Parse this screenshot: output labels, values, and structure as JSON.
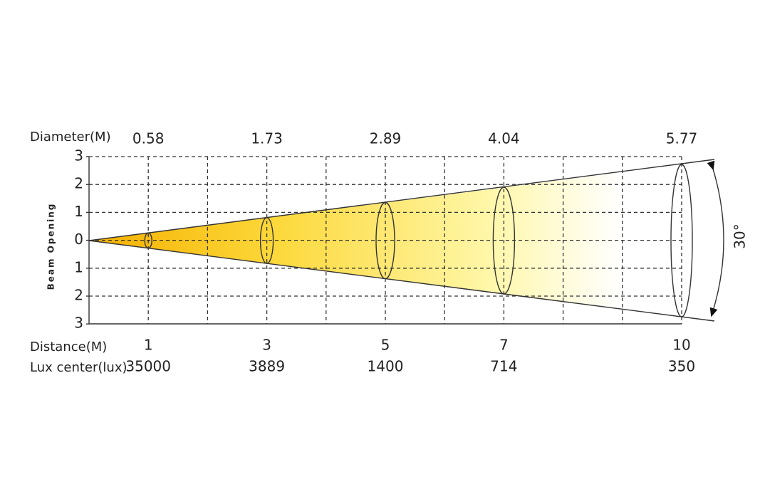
{
  "diameter_label": "Diameter(M)",
  "beam_label": "Beam Opening",
  "distance_label": "Distance(M)",
  "lux_label": "Lux center(lux)",
  "angle": "30°",
  "y_labels": [
    "3",
    "2",
    "1",
    "0",
    "1",
    "2",
    "3"
  ],
  "columns": [
    {
      "diameter": "0.58",
      "distance": "1",
      "lux": "35000"
    },
    {
      "diameter": "1.73",
      "distance": "3",
      "lux": "3889"
    },
    {
      "diameter": "2.89",
      "distance": "5",
      "lux": "1400"
    },
    {
      "diameter": "4.04",
      "distance": "7",
      "lux": "714"
    },
    {
      "diameter": "5.77",
      "distance": "10",
      "lux": "350"
    }
  ]
}
